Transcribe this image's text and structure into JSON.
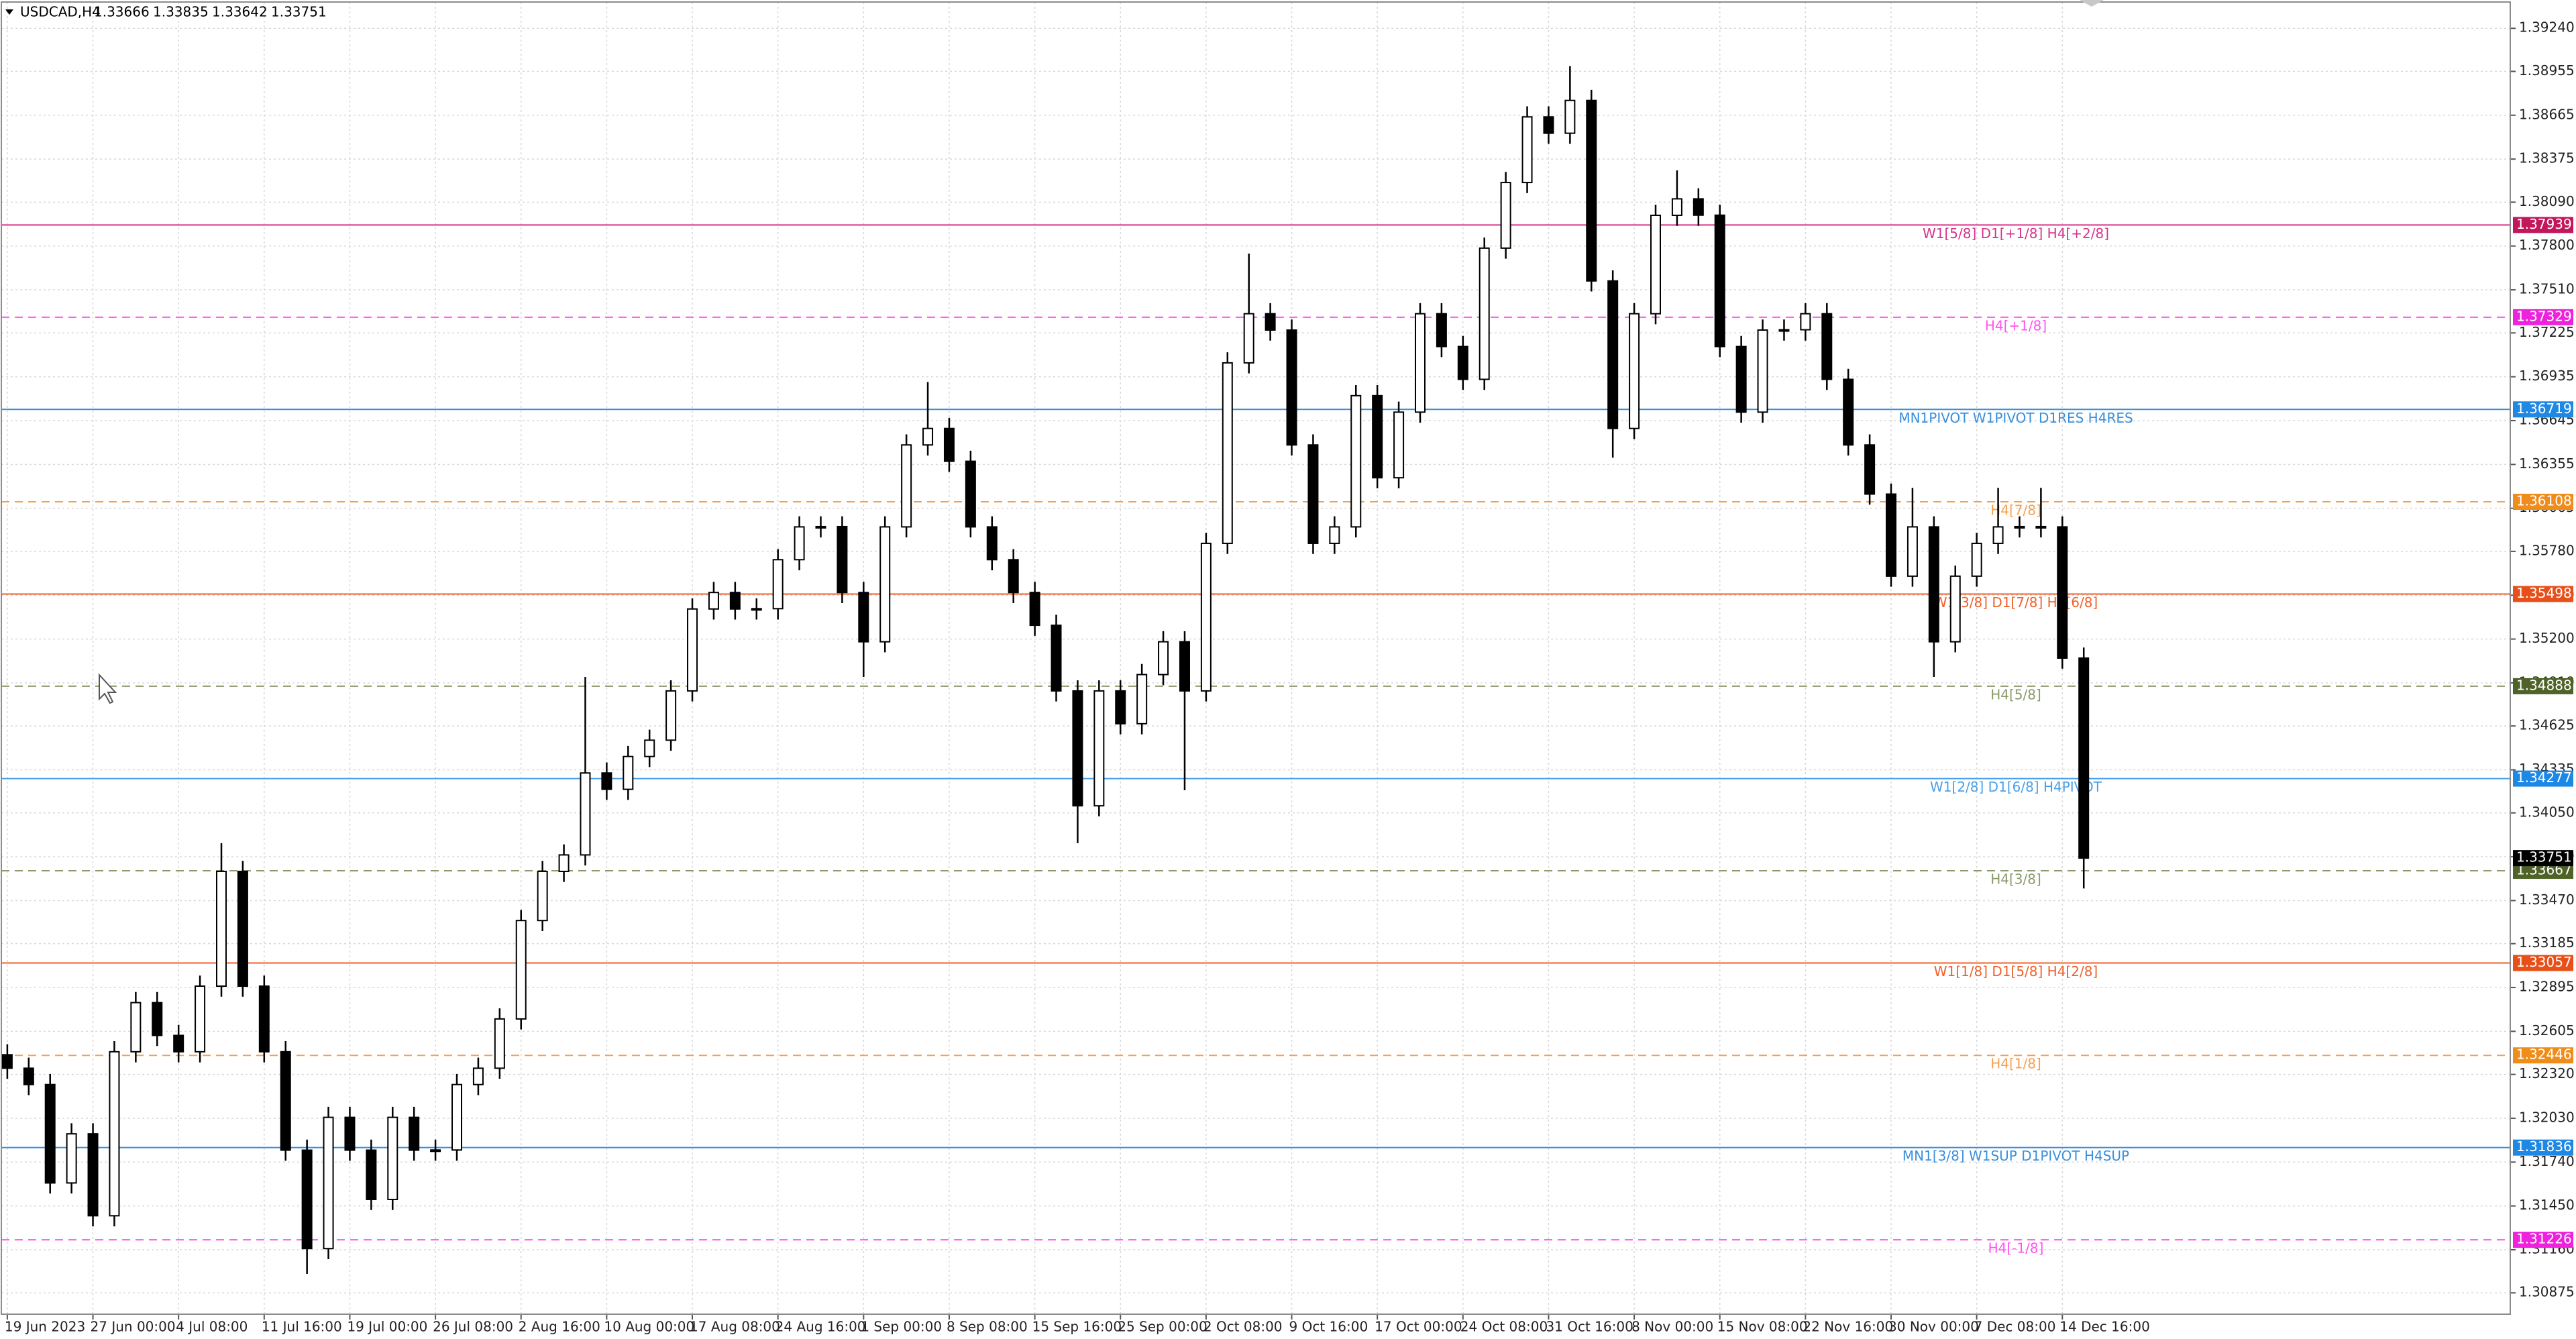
{
  "chart_data": {
    "type": "candlestick",
    "symbol": "USDCAD,H4",
    "header_ohlc": [
      1.33666,
      1.33835,
      1.33642,
      1.33751
    ],
    "ylim": [
      1.30734,
      1.39414
    ],
    "yticks": [
      {
        "value": 1.3924,
        "label": "1.39240"
      },
      1.38955,
      1.38665,
      1.38375,
      {
        "value": 1.3809,
        "label": "1.38090"
      },
      {
        "value": 1.378,
        "label": "1.37800"
      },
      {
        "value": 1.3751,
        "label": "1.37510"
      },
      1.37225,
      1.36935,
      1.36645,
      1.36355,
      1.36065,
      {
        "value": 1.3578,
        "label": "1.35780"
      },
      {
        "value": 1.3549,
        "label": "1.35490"
      },
      {
        "value": 1.352,
        "label": "1.35200"
      },
      {
        "value": 1.3491,
        "label": "1.34910"
      },
      1.34625,
      1.34335,
      {
        "value": 1.3405,
        "label": "1.34050"
      },
      {
        "value": 1.3376,
        "label": "1.33760"
      },
      {
        "value": 1.3347,
        "label": "1.33470"
      },
      1.33185,
      1.32895,
      1.32605,
      {
        "value": 1.3232,
        "label": "1.32320"
      },
      {
        "value": 1.3203,
        "label": "1.32030"
      },
      {
        "value": 1.3174,
        "label": "1.31740"
      },
      {
        "value": 1.3145,
        "label": "1.31450"
      },
      {
        "value": 1.3116,
        "label": "1.31160"
      },
      1.30875
    ],
    "grid": true,
    "up_color": "#ffffff",
    "down_color": "#000000",
    "wick_color": "#000000",
    "candles": [
      {
        "x": "19 Jun 2023",
        "open": 1.3245,
        "high": 1.3252,
        "low": 1.32291,
        "close": 1.32361
      },
      {
        "x": null,
        "open": 1.32361,
        "high": 1.32431,
        "low": 1.32183,
        "close": 1.32253
      },
      {
        "x": null,
        "open": 1.32253,
        "high": 1.32323,
        "low": 1.31532,
        "close": 1.31602
      },
      {
        "x": null,
        "open": 1.31602,
        "high": 1.31997,
        "low": 1.31532,
        "close": 1.31927
      },
      {
        "x": "27 Jun 00:00",
        "open": 1.31927,
        "high": 1.31997,
        "low": 1.31315,
        "close": 1.31385
      },
      {
        "x": null,
        "open": 1.31385,
        "high": 1.3254,
        "low": 1.31315,
        "close": 1.3247
      },
      {
        "x": null,
        "open": 1.3247,
        "high": 1.32865,
        "low": 1.324,
        "close": 1.32795
      },
      {
        "x": null,
        "open": 1.32795,
        "high": 1.32865,
        "low": 1.32508,
        "close": 1.32578
      },
      {
        "x": "4 Jul 08:00",
        "open": 1.32578,
        "high": 1.32648,
        "low": 1.324,
        "close": 1.3247
      },
      {
        "x": null,
        "open": 1.3247,
        "high": 1.32974,
        "low": 1.324,
        "close": 1.32904
      },
      {
        "x": null,
        "open": 1.32904,
        "high": 1.3385,
        "low": 1.32834,
        "close": 1.33663
      },
      {
        "x": null,
        "open": 1.33663,
        "high": 1.33733,
        "low": 1.32834,
        "close": 1.32904
      },
      {
        "x": "11 Jul 16:00",
        "open": 1.32904,
        "high": 1.32974,
        "low": 1.324,
        "close": 1.3247
      },
      {
        "x": null,
        "open": 1.3247,
        "high": 1.3254,
        "low": 1.31749,
        "close": 1.31819
      },
      {
        "x": null,
        "open": 1.31819,
        "high": 1.31889,
        "low": 1.31,
        "close": 1.31168
      },
      {
        "x": null,
        "open": 1.31168,
        "high": 1.32106,
        "low": 1.31098,
        "close": 1.32036
      },
      {
        "x": "19 Jul 00:00",
        "open": 1.32036,
        "high": 1.32106,
        "low": 1.31749,
        "close": 1.31819
      },
      {
        "x": null,
        "open": 1.31819,
        "high": 1.31889,
        "low": 1.31423,
        "close": 1.31493
      },
      {
        "x": null,
        "open": 1.31493,
        "high": 1.32106,
        "low": 1.31423,
        "close": 1.32036
      },
      {
        "x": null,
        "open": 1.32036,
        "high": 1.32106,
        "low": 1.31749,
        "close": 1.31819
      },
      {
        "x": "26 Jul 08:00",
        "open": 1.31819,
        "high": 1.31889,
        "low": 1.31749,
        "close": 1.3182
      },
      {
        "x": null,
        "open": 1.3182,
        "high": 1.32323,
        "low": 1.31749,
        "close": 1.32253
      },
      {
        "x": null,
        "open": 1.32253,
        "high": 1.32431,
        "low": 1.32183,
        "close": 1.32361
      },
      {
        "x": null,
        "open": 1.32361,
        "high": 1.32757,
        "low": 1.32291,
        "close": 1.32687
      },
      {
        "x": "2 Aug 16:00",
        "open": 1.32687,
        "high": 1.33408,
        "low": 1.32617,
        "close": 1.33338
      },
      {
        "x": null,
        "open": 1.33338,
        "high": 1.33733,
        "low": 1.33268,
        "close": 1.33663
      },
      {
        "x": null,
        "open": 1.33663,
        "high": 1.33842,
        "low": 1.33593,
        "close": 1.33772
      },
      {
        "x": null,
        "open": 1.33772,
        "high": 1.3495,
        "low": 1.33702,
        "close": 1.34314
      },
      {
        "x": "10 Aug 00:00",
        "open": 1.34314,
        "high": 1.34384,
        "low": 1.34136,
        "close": 1.34206
      },
      {
        "x": null,
        "open": 1.34206,
        "high": 1.34493,
        "low": 1.34136,
        "close": 1.34423
      },
      {
        "x": null,
        "open": 1.34423,
        "high": 1.34601,
        "low": 1.34353,
        "close": 1.34531
      },
      {
        "x": null,
        "open": 1.34531,
        "high": 1.34927,
        "low": 1.34461,
        "close": 1.34857
      },
      {
        "x": "17 Aug 08:00",
        "open": 1.34857,
        "high": 1.35469,
        "low": 1.34787,
        "close": 1.35399
      },
      {
        "x": null,
        "open": 1.35399,
        "high": 1.35578,
        "low": 1.35329,
        "close": 1.35508
      },
      {
        "x": null,
        "open": 1.35508,
        "high": 1.35578,
        "low": 1.35329,
        "close": 1.35399
      },
      {
        "x": null,
        "open": 1.35399,
        "high": 1.35469,
        "low": 1.35329,
        "close": 1.35401
      },
      {
        "x": "24 Aug 16:00",
        "open": 1.35401,
        "high": 1.35795,
        "low": 1.35329,
        "close": 1.35725
      },
      {
        "x": null,
        "open": 1.35725,
        "high": 1.36012,
        "low": 1.35655,
        "close": 1.35942
      },
      {
        "x": null,
        "open": 1.35942,
        "high": 1.36012,
        "low": 1.35872,
        "close": 1.35944
      },
      {
        "x": null,
        "open": 1.35944,
        "high": 1.36012,
        "low": 1.35438,
        "close": 1.35508
      },
      {
        "x": "1 Sep 00:00",
        "open": 1.35508,
        "high": 1.35578,
        "low": 1.3495,
        "close": 1.35182
      },
      {
        "x": null,
        "open": 1.35182,
        "high": 1.36012,
        "low": 1.35112,
        "close": 1.35942
      },
      {
        "x": null,
        "open": 1.35942,
        "high": 1.36554,
        "low": 1.35872,
        "close": 1.36484
      },
      {
        "x": null,
        "open": 1.36484,
        "high": 1.369,
        "low": 1.36414,
        "close": 1.36593
      },
      {
        "x": "8 Sep 08:00",
        "open": 1.36593,
        "high": 1.36663,
        "low": 1.36306,
        "close": 1.36376
      },
      {
        "x": null,
        "open": 1.36376,
        "high": 1.36446,
        "low": 1.35872,
        "close": 1.35942
      },
      {
        "x": null,
        "open": 1.35942,
        "high": 1.36012,
        "low": 1.35655,
        "close": 1.35725
      },
      {
        "x": null,
        "open": 1.35725,
        "high": 1.35795,
        "low": 1.35438,
        "close": 1.35508
      },
      {
        "x": "15 Sep 16:00",
        "open": 1.35508,
        "high": 1.35578,
        "low": 1.35221,
        "close": 1.35291
      },
      {
        "x": null,
        "open": 1.35291,
        "high": 1.35361,
        "low": 1.34787,
        "close": 1.34857
      },
      {
        "x": null,
        "open": 1.34857,
        "high": 1.34927,
        "low": 1.3385,
        "close": 1.34097
      },
      {
        "x": null,
        "open": 1.34097,
        "high": 1.34927,
        "low": 1.34027,
        "close": 1.34857
      },
      {
        "x": "25 Sep 00:00",
        "open": 1.34857,
        "high": 1.34927,
        "low": 1.3457,
        "close": 1.3464
      },
      {
        "x": null,
        "open": 1.3464,
        "high": 1.35035,
        "low": 1.3457,
        "close": 1.34965
      },
      {
        "x": null,
        "open": 1.34965,
        "high": 1.35252,
        "low": 1.34895,
        "close": 1.35182
      },
      {
        "x": null,
        "open": 1.35182,
        "high": 1.35252,
        "low": 1.342,
        "close": 1.34857
      },
      {
        "x": "2 Oct 08:00",
        "open": 1.34857,
        "high": 1.35903,
        "low": 1.34787,
        "close": 1.35833
      },
      {
        "x": null,
        "open": 1.35833,
        "high": 1.37097,
        "low": 1.35763,
        "close": 1.37027
      },
      {
        "x": null,
        "open": 1.37027,
        "high": 1.3775,
        "low": 1.36957,
        "close": 1.37352
      },
      {
        "x": null,
        "open": 1.37352,
        "high": 1.37422,
        "low": 1.37174,
        "close": 1.37244
      },
      {
        "x": "9 Oct 16:00",
        "open": 1.37244,
        "high": 1.37314,
        "low": 1.36414,
        "close": 1.36484
      },
      {
        "x": null,
        "open": 1.36484,
        "high": 1.36554,
        "low": 1.35763,
        "close": 1.35833
      },
      {
        "x": null,
        "open": 1.35833,
        "high": 1.36012,
        "low": 1.35763,
        "close": 1.35942
      },
      {
        "x": null,
        "open": 1.35942,
        "high": 1.3688,
        "low": 1.35872,
        "close": 1.3681
      },
      {
        "x": "17 Oct 00:00",
        "open": 1.3681,
        "high": 1.3688,
        "low": 1.36197,
        "close": 1.36267
      },
      {
        "x": null,
        "open": 1.36267,
        "high": 1.36771,
        "low": 1.36197,
        "close": 1.36701
      },
      {
        "x": null,
        "open": 1.36701,
        "high": 1.37422,
        "low": 1.36631,
        "close": 1.37352
      },
      {
        "x": null,
        "open": 1.37352,
        "high": 1.37422,
        "low": 1.37065,
        "close": 1.37135
      },
      {
        "x": "24 Oct 08:00",
        "open": 1.37135,
        "high": 1.37205,
        "low": 1.36848,
        "close": 1.36918
      },
      {
        "x": null,
        "open": 1.36918,
        "high": 1.37856,
        "low": 1.36848,
        "close": 1.37786
      },
      {
        "x": null,
        "open": 1.37786,
        "high": 1.3829,
        "low": 1.37716,
        "close": 1.3822
      },
      {
        "x": null,
        "open": 1.3822,
        "high": 1.38724,
        "low": 1.3815,
        "close": 1.38654
      },
      {
        "x": "31 Oct 16:00",
        "open": 1.38654,
        "high": 1.38724,
        "low": 1.38476,
        "close": 1.38546
      },
      {
        "x": null,
        "open": 1.38546,
        "high": 1.3899,
        "low": 1.38476,
        "close": 1.38763
      },
      {
        "x": null,
        "open": 1.38763,
        "high": 1.38833,
        "low": 1.37499,
        "close": 1.37569
      },
      {
        "x": null,
        "open": 1.37569,
        "high": 1.37639,
        "low": 1.364,
        "close": 1.36593
      },
      {
        "x": "8 Nov 00:00",
        "open": 1.36593,
        "high": 1.37422,
        "low": 1.36523,
        "close": 1.37352
      },
      {
        "x": null,
        "open": 1.37352,
        "high": 1.38073,
        "low": 1.37282,
        "close": 1.38003
      },
      {
        "x": null,
        "open": 1.38003,
        "high": 1.383,
        "low": 1.37933,
        "close": 1.38112
      },
      {
        "x": null,
        "open": 1.38112,
        "high": 1.38182,
        "low": 1.37933,
        "close": 1.38004
      },
      {
        "x": "15 Nov 08:00",
        "open": 1.38004,
        "high": 1.38073,
        "low": 1.37065,
        "close": 1.37135
      },
      {
        "x": null,
        "open": 1.37135,
        "high": 1.37205,
        "low": 1.36631,
        "close": 1.36701
      },
      {
        "x": null,
        "open": 1.36701,
        "high": 1.37314,
        "low": 1.36631,
        "close": 1.37244
      },
      {
        "x": null,
        "open": 1.37244,
        "high": 1.37314,
        "low": 1.37174,
        "close": 1.37246
      },
      {
        "x": "22 Nov 16:00",
        "open": 1.37246,
        "high": 1.37422,
        "low": 1.37174,
        "close": 1.37352
      },
      {
        "x": null,
        "open": 1.37352,
        "high": 1.37422,
        "low": 1.36848,
        "close": 1.36918
      },
      {
        "x": null,
        "open": 1.36918,
        "high": 1.36988,
        "low": 1.36414,
        "close": 1.36484
      },
      {
        "x": null,
        "open": 1.36484,
        "high": 1.36554,
        "low": 1.36089,
        "close": 1.36159
      },
      {
        "x": "30 Nov 00:00",
        "open": 1.36159,
        "high": 1.36229,
        "low": 1.35546,
        "close": 1.35616
      },
      {
        "x": null,
        "open": 1.35616,
        "high": 1.362,
        "low": 1.35546,
        "close": 1.35942
      },
      {
        "x": null,
        "open": 1.35942,
        "high": 1.36012,
        "low": 1.3495,
        "close": 1.35182
      },
      {
        "x": null,
        "open": 1.35182,
        "high": 1.35686,
        "low": 1.35112,
        "close": 1.35616
      },
      {
        "x": "7 Dec 08:00",
        "open": 1.35616,
        "high": 1.35903,
        "low": 1.35546,
        "close": 1.35833
      },
      {
        "x": null,
        "open": 1.35833,
        "high": 1.362,
        "low": 1.35763,
        "close": 1.35942
      },
      {
        "x": null,
        "open": 1.35942,
        "high": 1.36012,
        "low": 1.35872,
        "close": 1.35944
      },
      {
        "x": null,
        "open": 1.35944,
        "high": 1.362,
        "low": 1.35872,
        "close": 1.35942
      },
      {
        "x": "14 Dec 16:00",
        "open": 1.35942,
        "high": 1.36012,
        "low": 1.35004,
        "close": 1.35074
      },
      {
        "x": null,
        "open": 1.35074,
        "high": 1.35144,
        "low": 1.3355,
        "close": 1.33751
      }
    ],
    "levels": [
      {
        "price": 1.37939,
        "label": "W1[5/8] D1[+1/8] H4[+2/8]",
        "color": "#d6338c",
        "tag_color": "#c2185b",
        "style": "solid"
      },
      {
        "price": 1.37329,
        "label": "H4[+1/8]",
        "color": "#ff55ee",
        "tag_color": "#ee22dd",
        "style": "dashed"
      },
      {
        "price": 1.36719,
        "label": "MN1PIVOT W1PIVOT D1RES H4RES",
        "color": "#3a8fdc",
        "tag_color": "#1e88e5",
        "style": "solid"
      },
      {
        "price": 1.36108,
        "label": "H4[7/8]",
        "color": "#f5a050",
        "tag_color": "#f08c1a",
        "style": "dashed"
      },
      {
        "price": 1.35498,
        "label": "W1[3/8] D1[7/8] H4[6/8]",
        "color": "#f0602a",
        "tag_color": "#e8501a",
        "style": "solid"
      },
      {
        "price": 1.34888,
        "label": "H4[5/8]",
        "color": "#8a9a6a",
        "tag_color": "#4f6328",
        "style": "dashed"
      },
      {
        "price": 1.34277,
        "label": "W1[2/8] D1[6/8] H4PIVOT",
        "color": "#4aa0ea",
        "tag_color": "#1e88e5",
        "style": "solid"
      },
      {
        "price": 1.33667,
        "label": "H4[3/8]",
        "color": "#8a9a6a",
        "tag_color": "#4f6328",
        "style": "dashed"
      },
      {
        "price": 1.33057,
        "label": "W1[1/8] D1[5/8] H4[2/8]",
        "color": "#f0602a",
        "tag_color": "#e8501a",
        "style": "solid"
      },
      {
        "price": 1.32446,
        "label": "H4[1/8]",
        "color": "#f5a050",
        "tag_color": "#f08c1a",
        "style": "dashed"
      },
      {
        "price": 1.31836,
        "label": "MN1[3/8] W1SUP D1PIVOT H4SUP",
        "color": "#3a8fdc",
        "tag_color": "#1e88e5",
        "style": "solid"
      },
      {
        "price": 1.31226,
        "label": "H4[-1/8]",
        "color": "#ff55ee",
        "tag_color": "#ee22dd",
        "style": "dashed"
      }
    ]
  }
}
